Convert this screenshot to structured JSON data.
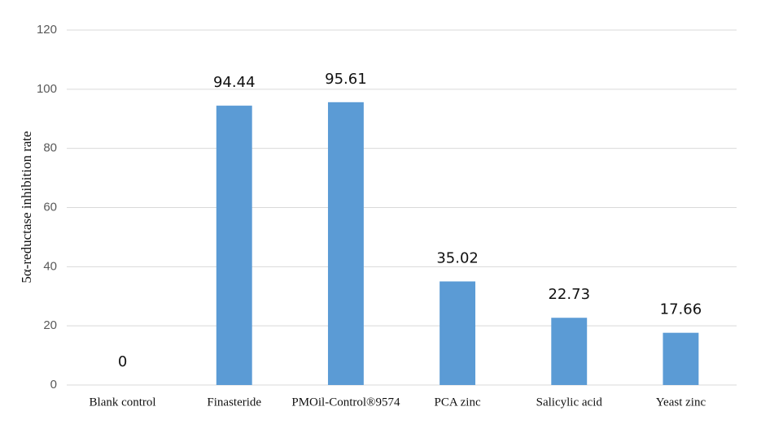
{
  "chart_data": {
    "type": "bar",
    "y_label": "5α-reductase inhibition rate",
    "categories": [
      "Blank control",
      "Finasteride",
      "PMOil-Control®9574",
      "PCA zinc",
      "Salicylic acid",
      "Yeast zinc"
    ],
    "values": [
      0,
      94.44,
      95.61,
      35.02,
      22.73,
      17.66
    ],
    "color": "#5b9bd5",
    "ylim": [
      0,
      120
    ],
    "yticks": [
      0,
      20,
      40,
      60,
      80,
      100,
      120
    ],
    "grid": true
  }
}
